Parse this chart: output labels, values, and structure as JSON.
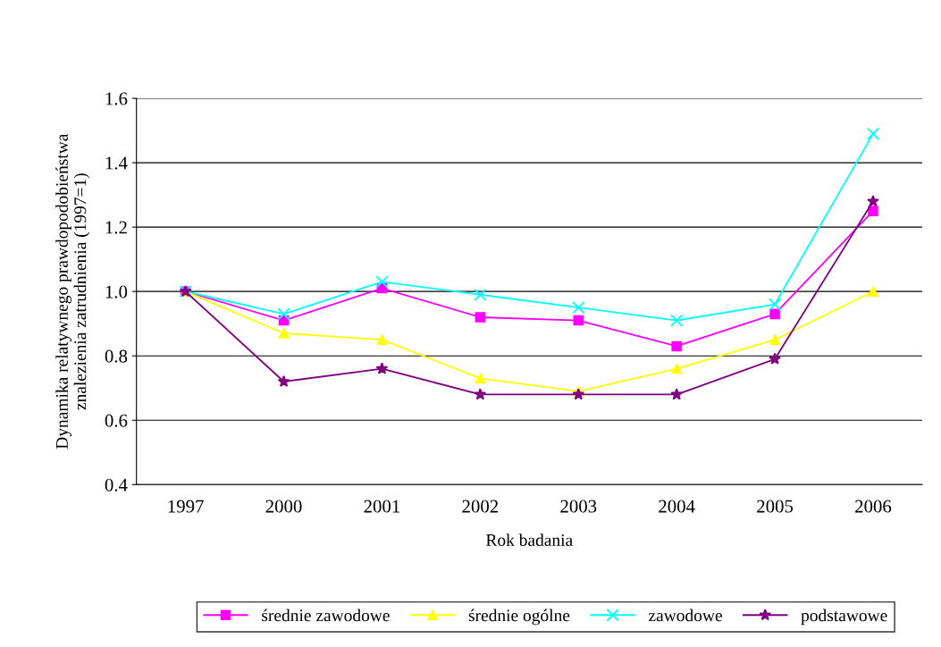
{
  "chart_data": {
    "type": "line",
    "xlabel": "Rok badania",
    "ylabel": "Dynamika relatywnego prawdopodobieństwa\nznalezienia zatrudnienia (1997=1)",
    "categories": [
      "1997",
      "2000",
      "2001",
      "2002",
      "2003",
      "2004",
      "2005",
      "2006"
    ],
    "series": [
      {
        "name": "średnie zawodowe",
        "color": "#ff00ff",
        "marker": "square",
        "values": [
          1.0,
          0.91,
          1.01,
          0.92,
          0.91,
          0.83,
          0.93,
          1.25
        ]
      },
      {
        "name": "średnie ogólne",
        "color": "#ffff00",
        "marker": "triangle",
        "values": [
          1.0,
          0.87,
          0.85,
          0.73,
          0.69,
          0.76,
          0.85,
          1.0
        ]
      },
      {
        "name": "zawodowe",
        "color": "#00ffff",
        "marker": "cross",
        "values": [
          1.0,
          0.93,
          1.03,
          0.99,
          0.95,
          0.91,
          0.96,
          1.49
        ]
      },
      {
        "name": "podstawowe",
        "color": "#800080",
        "marker": "star",
        "values": [
          1.0,
          0.72,
          0.76,
          0.68,
          0.68,
          0.68,
          0.79,
          1.28
        ]
      }
    ],
    "ylim": [
      0.4,
      1.6
    ],
    "yticks": [
      {
        "value": 0.4,
        "label": "0.4"
      },
      {
        "value": 0.6,
        "label": "0.6"
      },
      {
        "value": 0.8,
        "label": "0.8"
      },
      {
        "value": 1.0,
        "label": "1.0"
      },
      {
        "value": 1.2,
        "label": "1.2"
      },
      {
        "value": 1.4,
        "label": "1.4"
      },
      {
        "value": 1.6,
        "label": "1.6"
      }
    ],
    "grid": "y",
    "legend": "bottom"
  }
}
